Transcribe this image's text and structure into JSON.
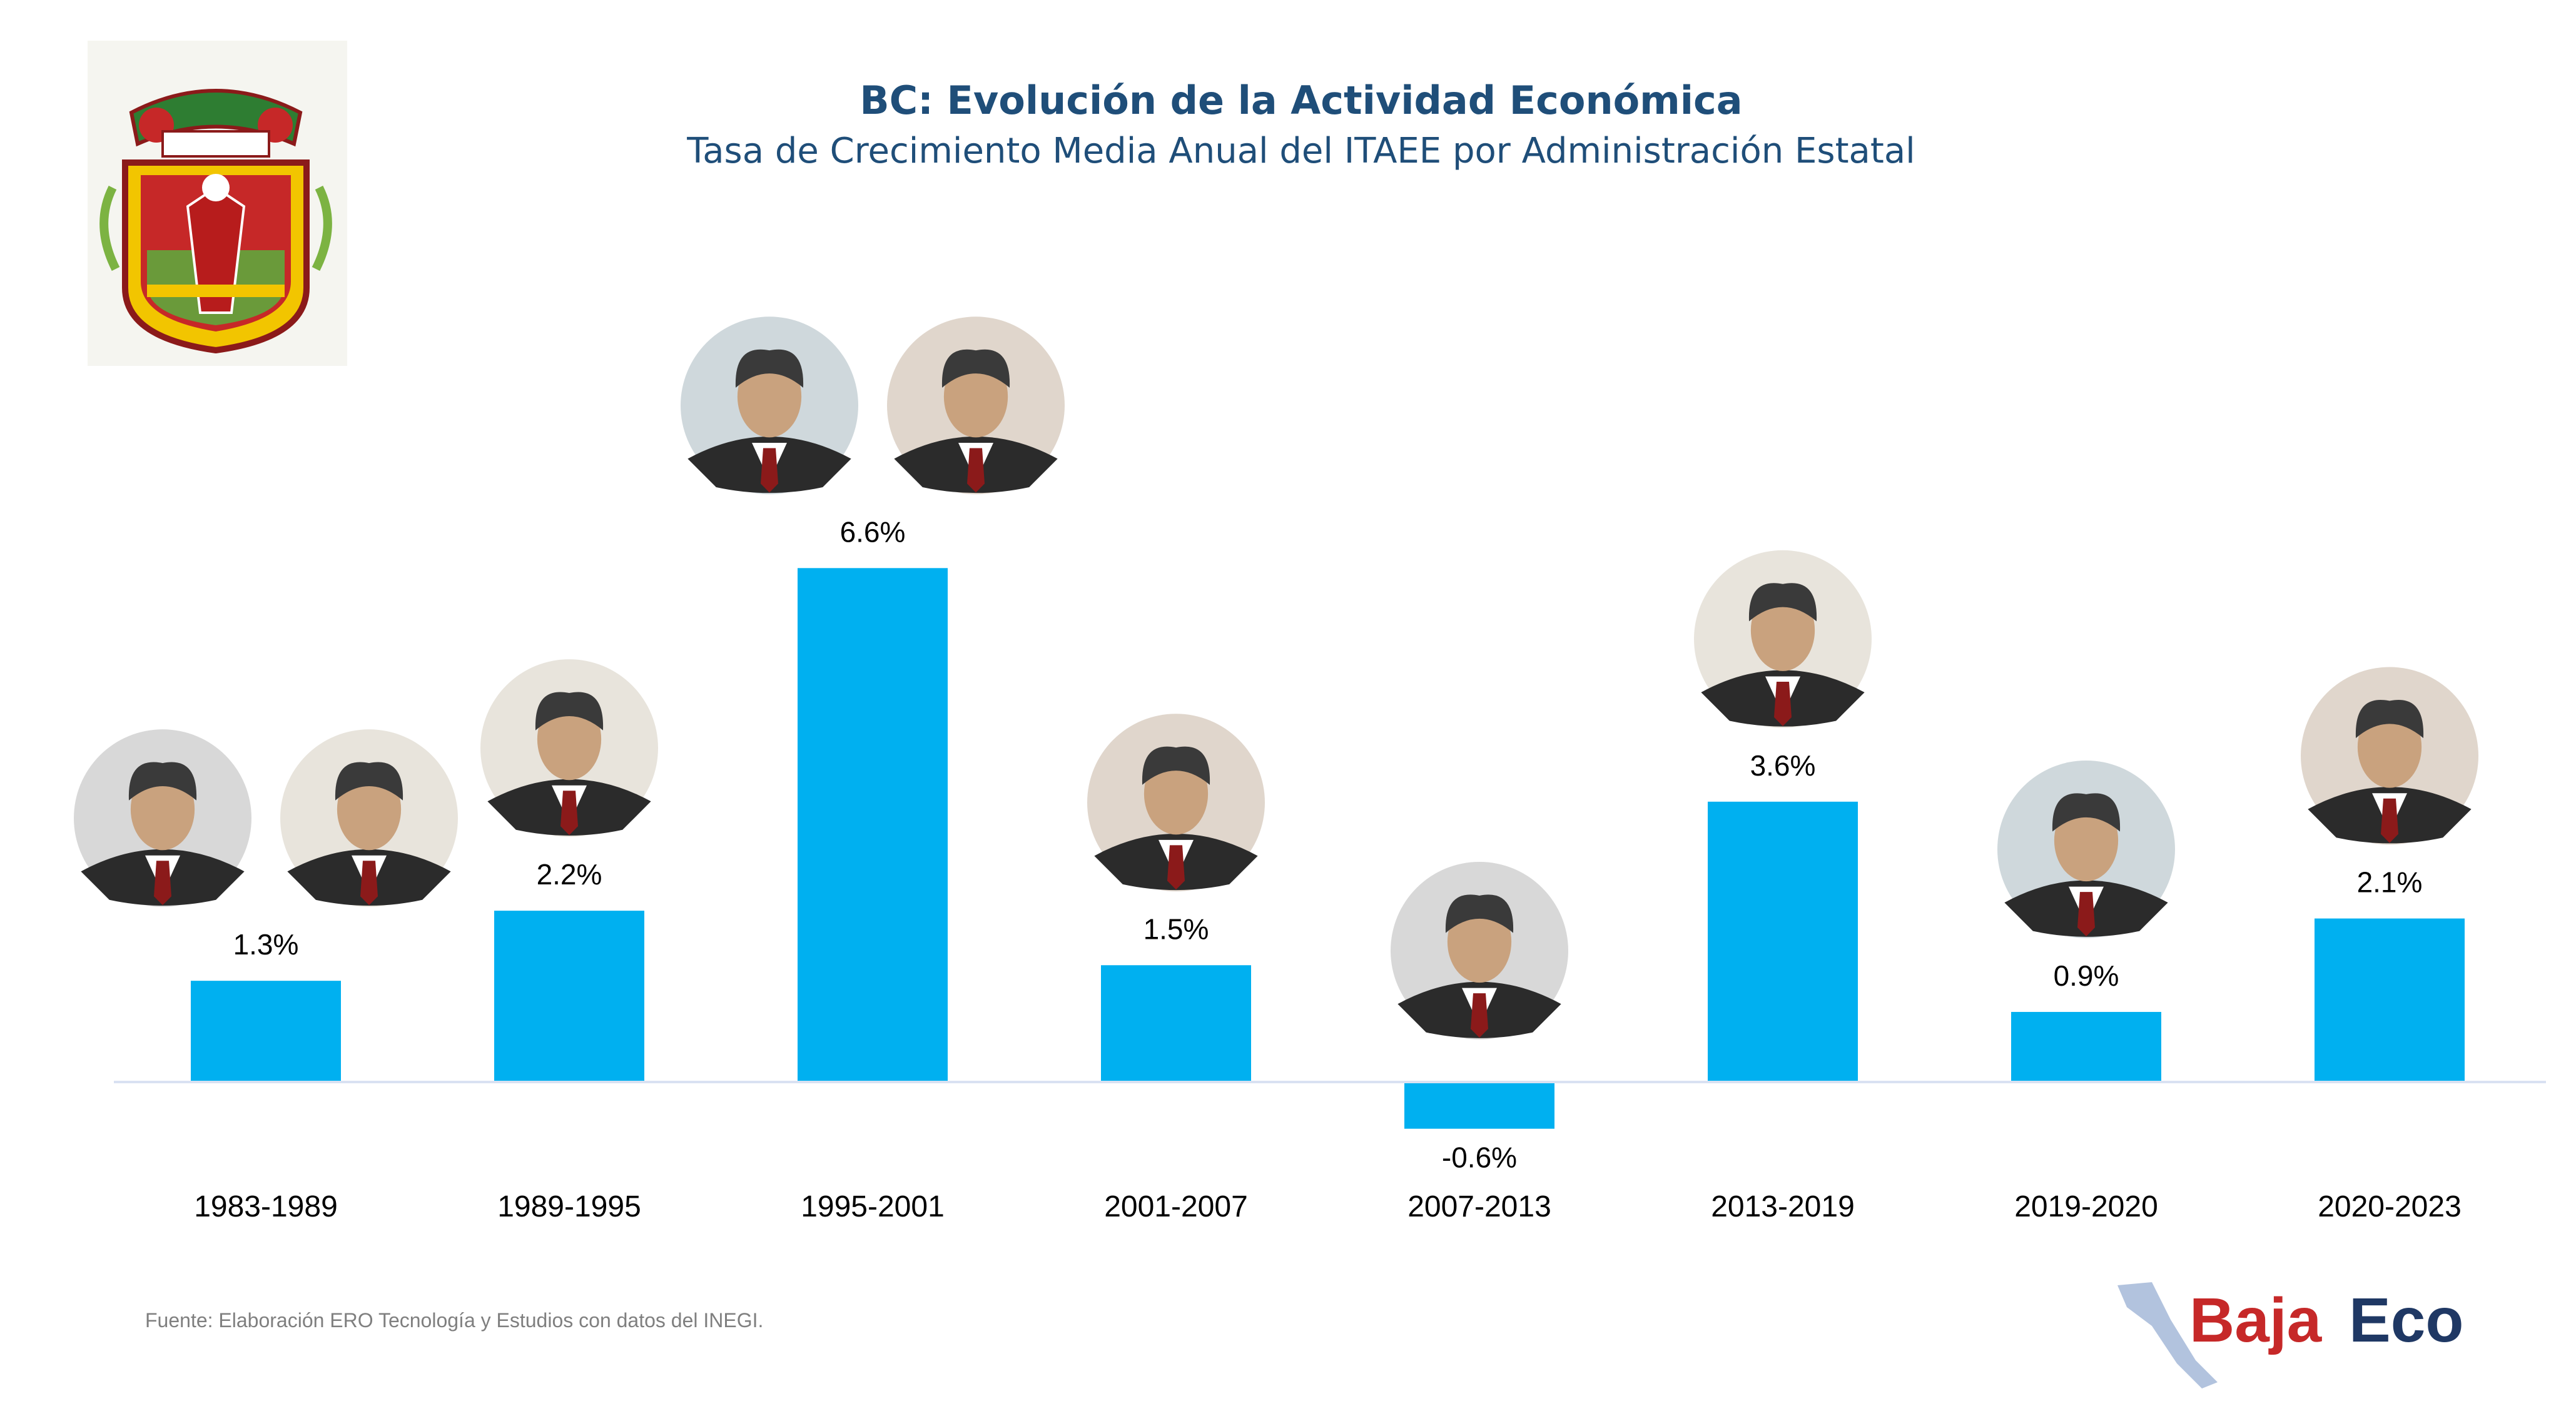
{
  "header": {
    "title": "BC: Evolución de la Actividad Económica",
    "subtitle": "Tasa de Crecimiento Media Anual del ITAEE por Administración Estatal"
  },
  "colors": {
    "bar": "#00b0f0",
    "positive_label": "#000000",
    "negative_label": "#ff0000",
    "title": "#1f4e79",
    "axis": "#d9e1f2"
  },
  "chart_data": {
    "type": "bar",
    "title": "BC: Evolución de la Actividad Económica",
    "subtitle": "Tasa de Crecimiento Media Anual del ITAEE por Administración Estatal",
    "categories": [
      "1983-1989",
      "1989-1995",
      "1995-2001",
      "2001-2007",
      "2007-2013",
      "2013-2019",
      "2019-2020",
      "2020-2023"
    ],
    "values": [
      1.3,
      2.2,
      6.6,
      1.5,
      -0.6,
      3.6,
      0.9,
      2.1
    ],
    "data_labels": [
      "1.3%",
      "2.2%",
      "6.6%",
      "1.5%",
      "-0.6%",
      "3.6%",
      "0.9%",
      "2.1%"
    ],
    "unit": "%",
    "ylim": [
      -1.0,
      7.0
    ],
    "grid": false,
    "legend": "none",
    "portraits_per_category": [
      2,
      1,
      2,
      1,
      1,
      1,
      1,
      1
    ]
  },
  "footer": {
    "source": "Fuente: Elaboración ERO Tecnología y Estudios con datos del INEGI.",
    "brand_part1": "Baja",
    "brand_part2": "Eco"
  },
  "icons": {
    "logo": "baja-california-coat-of-arms-icon",
    "portrait": "governor-portrait-icon",
    "brand_map": "baja-peninsula-map-icon"
  }
}
